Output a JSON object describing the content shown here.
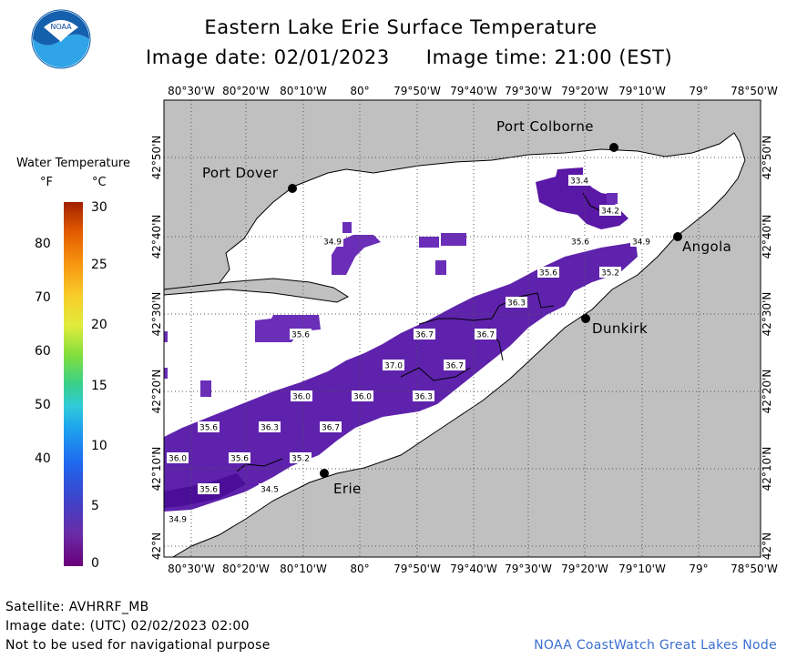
{
  "header": {
    "title": "Eastern Lake Erie Surface Temperature",
    "image_date": "Image date: 02/01/2023",
    "image_time": "Image time: 21:00 (EST)"
  },
  "logo": {
    "text": "NOAA",
    "icon": "noaa-logo-icon"
  },
  "legend": {
    "title": "Water Temperature",
    "unit_f": "°F",
    "unit_c": "°C",
    "f_ticks": [
      {
        "label": "80",
        "value": 80
      },
      {
        "label": "70",
        "value": 70
      },
      {
        "label": "60",
        "value": 60
      },
      {
        "label": "50",
        "value": 50
      },
      {
        "label": "40",
        "value": 40
      }
    ],
    "c_ticks": [
      {
        "label": "30",
        "value": 30
      },
      {
        "label": "25",
        "value": 25
      },
      {
        "label": "20",
        "value": 20
      },
      {
        "label": "15",
        "value": 15
      },
      {
        "label": "10",
        "value": 10
      },
      {
        "label": "5",
        "value": 5
      },
      {
        "label": "0",
        "value": 0
      }
    ]
  },
  "map": {
    "lon_labels": [
      "80°30'W",
      "80°20'W",
      "80°10'W",
      "80°",
      "79°50'W",
      "79°40'W",
      "79°30'W",
      "79°20'W",
      "79°10'W",
      "79°",
      "78°50'W"
    ],
    "lat_labels": [
      "42°50'N",
      "42°40'N",
      "42°30'N",
      "42°20'N",
      "42°10'N",
      "42°N"
    ],
    "cities": [
      {
        "name": "Port Colborne"
      },
      {
        "name": "Port Dover"
      },
      {
        "name": "Angola"
      },
      {
        "name": "Dunkirk"
      },
      {
        "name": "Erie"
      }
    ],
    "temperature_labels": [
      {
        "text": "33.4",
        "value": 33.4
      },
      {
        "text": "34.2",
        "value": 34.2
      },
      {
        "text": "35.6",
        "value": 35.6
      },
      {
        "text": "34.9",
        "value": 34.9
      },
      {
        "text": "35.6",
        "value": 35.6
      },
      {
        "text": "35.2",
        "value": 35.2
      },
      {
        "text": "34.9",
        "value": 34.9
      },
      {
        "text": "36.3",
        "value": 36.3
      },
      {
        "text": "35.6",
        "value": 35.6
      },
      {
        "text": "36.7",
        "value": 36.7
      },
      {
        "text": "36.7",
        "value": 36.7
      },
      {
        "text": "37.0",
        "value": 37.0
      },
      {
        "text": "36.7",
        "value": 36.7
      },
      {
        "text": "36.0",
        "value": 36.0
      },
      {
        "text": "36.0",
        "value": 36.0
      },
      {
        "text": "36.3",
        "value": 36.3
      },
      {
        "text": "35.6",
        "value": 35.6
      },
      {
        "text": "36.3",
        "value": 36.3
      },
      {
        "text": "36.7",
        "value": 36.7
      },
      {
        "text": "36.0",
        "value": 36.0
      },
      {
        "text": "35.6",
        "value": 35.6
      },
      {
        "text": "35.2",
        "value": 35.2
      },
      {
        "text": "35.6",
        "value": 35.6
      },
      {
        "text": "34.5",
        "value": 34.5
      },
      {
        "text": "34.9",
        "value": 34.9
      }
    ],
    "colors": {
      "land": "#c0c0c0",
      "water_no_data": "#ffffff",
      "water_cold": "#6a2eb8",
      "water_colder": "#5a1aa0"
    }
  },
  "footer": {
    "satellite": "Satellite: AVHRRF_MB",
    "image_date_utc": "Image date: (UTC) 02/02/2023  02:00",
    "disclaimer": "Not to be used for navigational purpose",
    "credit": "NOAA CoastWatch Great Lakes Node"
  }
}
